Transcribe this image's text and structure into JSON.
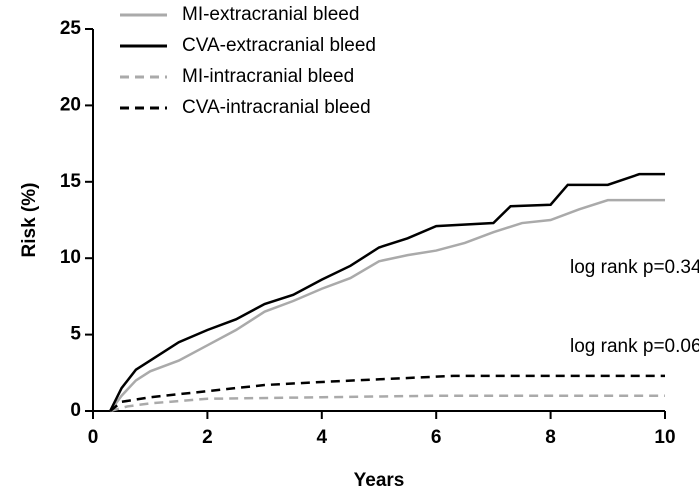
{
  "chart_data": {
    "type": "line",
    "xlabel": "Years",
    "ylabel": "Risk (%)",
    "xlim": [
      0,
      10
    ],
    "ylim": [
      0,
      25
    ],
    "xticks": [
      0,
      2,
      4,
      6,
      8,
      10
    ],
    "yticks": [
      0,
      5,
      10,
      15,
      20,
      25
    ],
    "series": [
      {
        "name": "MI-extracranial bleed",
        "color": "#aaaaaa",
        "dash": false,
        "x": [
          0.3,
          0.5,
          0.75,
          1,
          1.5,
          2,
          2.5,
          3,
          3.5,
          4,
          4.5,
          5,
          5.5,
          6,
          6.5,
          7,
          7.5,
          8,
          8.5,
          9,
          10
        ],
        "values": [
          0,
          1,
          2,
          2.6,
          3.3,
          4.3,
          5.3,
          6.5,
          7.2,
          8,
          8.7,
          9.8,
          10.2,
          10.5,
          11,
          11.7,
          12.3,
          12.5,
          13.2,
          13.8,
          13.8
        ]
      },
      {
        "name": "CVA-extracranial bleed",
        "color": "#000000",
        "dash": false,
        "x": [
          0.3,
          0.5,
          0.75,
          1,
          1.5,
          2,
          2.5,
          3,
          3.5,
          4,
          4.5,
          5,
          5.5,
          6,
          7,
          7.3,
          8,
          8.3,
          9,
          9.55,
          10
        ],
        "values": [
          0,
          1.5,
          2.7,
          3.3,
          4.5,
          5.3,
          6,
          7,
          7.6,
          8.6,
          9.5,
          10.7,
          11.3,
          12.1,
          12.3,
          13.4,
          13.5,
          14.8,
          14.8,
          15.5,
          15.5
        ]
      },
      {
        "name": "MI-intracranial bleed",
        "color": "#aaaaaa",
        "dash": true,
        "x": [
          0.3,
          0.6,
          1,
          2,
          4,
          6,
          10
        ],
        "values": [
          0,
          0.3,
          0.5,
          0.8,
          0.9,
          1.0,
          1.0
        ]
      },
      {
        "name": "CVA-intracranial bleed",
        "color": "#000000",
        "dash": true,
        "x": [
          0.3,
          0.5,
          1,
          2,
          3,
          4,
          6.3,
          10
        ],
        "values": [
          0,
          0.6,
          0.9,
          1.3,
          1.7,
          1.9,
          2.3,
          2.3
        ]
      }
    ],
    "annotations": [
      "log rank p=0.34",
      "log rank p=0.06"
    ]
  }
}
